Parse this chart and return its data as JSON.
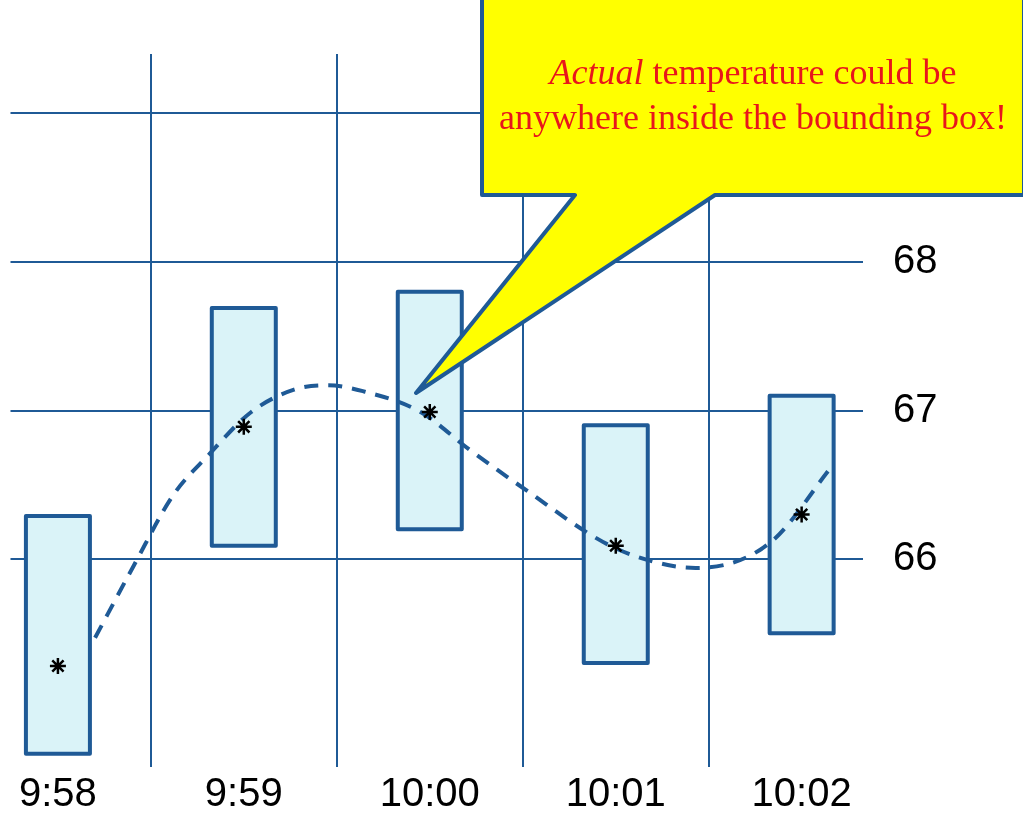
{
  "chart_data": {
    "type": "bar",
    "x": [
      9.96667,
      9.98333,
      10,
      10.01667,
      10.03333
    ],
    "series": [
      {
        "type": "scatter",
        "color": "#000000",
        "marker": "cross",
        "values": [
          65.28,
          66.89,
          66.99,
          66.09,
          66.3
        ]
      },
      {
        "type": "line",
        "color": "#1f5a96",
        "line_style": "dashed",
        "marker": "none",
        "x": [
          9.97,
          9.9735,
          9.977,
          9.98017,
          9.984,
          9.98783,
          9.99083,
          9.994,
          9.99917,
          10.0035,
          10.00833,
          10.01617,
          10.02133,
          10.02383,
          10.0305,
          10.036
        ],
        "values": [
          65.47,
          65.96,
          66.43,
          66.7,
          66.99,
          67.14,
          67.17,
          67.13,
          66.99,
          66.74,
          66.48,
          66.09,
          65.96,
          65.94,
          66.11,
          66.62
        ]
      }
    ],
    "base": [
      64.69,
      66.09,
      66.2,
      65.3,
      65.5
    ],
    "values": [
      1.6,
      1.6,
      1.6,
      1.6,
      1.6
    ],
    "color": "#daf3f8",
    "xlim": [
      9.96242,
      10.03883
    ],
    "xticks": [
      {
        "value": 9.96667,
        "label": "9:58"
      },
      {
        "value": 9.98333,
        "label": "9:59"
      },
      {
        "value": 10,
        "label": "10:00"
      },
      {
        "value": 10.01667,
        "label": "10:01"
      },
      {
        "value": 10.03333,
        "label": "10:02"
      }
    ],
    "ylim": [
      64.6,
      69.4
    ],
    "yticks": [
      66,
      67,
      68,
      {
        "value": 69,
        "label": null
      }
    ],
    "grid": true,
    "legend": false,
    "annotations": [
      "Actual temperature could be anywhere inside the bounding box!"
    ]
  }
}
